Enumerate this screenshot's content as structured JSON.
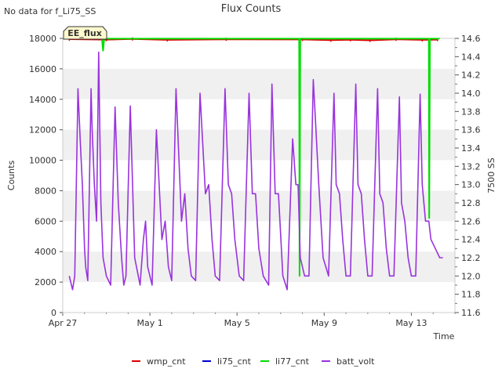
{
  "corner_note": "No data for f_Li75_SS",
  "badge": "EE_flux",
  "chart_data": {
    "type": "line",
    "title": "Flux Counts",
    "xlabel": "Time",
    "ylabel": "Counts",
    "y2label": "7500 SS",
    "x_unit": "days since Apr 27",
    "xlim": [
      0,
      18
    ],
    "ylim": [
      0,
      18000
    ],
    "y2lim": [
      11.6,
      14.6
    ],
    "x_ticks": [
      {
        "x": 0,
        "label": "Apr 27"
      },
      {
        "x": 4,
        "label": "May 1"
      },
      {
        "x": 8,
        "label": "May 5"
      },
      {
        "x": 12,
        "label": "May 9"
      },
      {
        "x": 16,
        "label": "May 13"
      }
    ],
    "y_ticks": [
      0,
      2000,
      4000,
      6000,
      8000,
      10000,
      12000,
      14000,
      16000,
      18000
    ],
    "y2_ticks": [
      "11.6",
      "11.8",
      "12.0",
      "12.2",
      "12.4",
      "12.6",
      "12.8",
      "13.0",
      "13.2",
      "13.4",
      "13.6",
      "13.8",
      "14.0",
      "14.2",
      "14.4",
      "14.6"
    ],
    "grid_bands": true,
    "legend_position": "bottom",
    "series": [
      {
        "name": "wmp_cnt",
        "color": "#dd0000",
        "axis": "left",
        "x": [
          0.3,
          2.0,
          3.2,
          4.8,
          7.5,
          11.0,
          12.3,
          13.2,
          14.1,
          15.3,
          16.5,
          17.2
        ],
        "values": [
          17950,
          17920,
          17960,
          17900,
          17940,
          17930,
          17880,
          17910,
          17870,
          17940,
          17900,
          17920
        ]
      },
      {
        "name": "li75_cnt",
        "color": "#0000cc",
        "axis": "left",
        "x": [],
        "values": []
      },
      {
        "name": "li77_cnt",
        "color": "#00dd00",
        "axis": "left",
        "x": [
          0.3,
          1.8,
          1.85,
          1.9,
          10.85,
          10.87,
          10.9,
          16.8,
          16.82,
          16.85,
          17.3
        ],
        "values": [
          17980,
          17980,
          17200,
          17980,
          17980,
          2400,
          17980,
          17980,
          6200,
          17980,
          17980
        ]
      },
      {
        "name": "batt_volt",
        "color": "#9933dd",
        "axis": "right",
        "x": [
          0.3,
          0.45,
          0.55,
          0.7,
          0.8,
          0.9,
          1.0,
          1.05,
          1.15,
          1.3,
          1.35,
          1.45,
          1.55,
          1.65,
          1.75,
          1.85,
          2.0,
          2.2,
          2.4,
          2.55,
          2.7,
          2.8,
          2.9,
          3.1,
          3.3,
          3.55,
          3.7,
          3.8,
          3.9,
          4.1,
          4.3,
          4.55,
          4.7,
          4.85,
          5.0,
          5.2,
          5.45,
          5.6,
          5.75,
          5.9,
          6.1,
          6.3,
          6.55,
          6.7,
          6.85,
          7.0,
          7.2,
          7.45,
          7.6,
          7.75,
          7.9,
          8.1,
          8.3,
          8.55,
          8.7,
          8.85,
          9.0,
          9.2,
          9.45,
          9.6,
          9.75,
          9.9,
          10.1,
          10.3,
          10.55,
          10.7,
          10.8,
          10.9,
          11.0,
          11.1,
          11.3,
          11.5,
          11.6,
          11.75,
          11.95,
          12.2,
          12.45,
          12.55,
          12.7,
          12.85,
          13.0,
          13.2,
          13.45,
          13.55,
          13.7,
          13.85,
          14.0,
          14.2,
          14.45,
          14.55,
          14.7,
          14.85,
          15.0,
          15.2,
          15.45,
          15.55,
          15.7,
          15.85,
          16.0,
          16.2,
          16.4,
          16.5,
          16.65,
          16.8,
          16.9,
          17.1,
          17.3,
          17.45
        ],
        "values": [
          12.0,
          11.85,
          12.0,
          14.05,
          13.5,
          13.0,
          12.3,
          12.1,
          11.95,
          14.05,
          13.6,
          13.0,
          12.6,
          14.45,
          12.8,
          12.2,
          12.0,
          11.9,
          13.85,
          12.8,
          12.2,
          11.9,
          12.0,
          13.86,
          12.2,
          11.9,
          12.4,
          12.6,
          12.1,
          11.9,
          13.6,
          12.4,
          12.6,
          12.1,
          11.95,
          14.05,
          12.6,
          12.9,
          12.3,
          12.0,
          11.95,
          14.0,
          12.9,
          13.0,
          12.4,
          12.0,
          11.95,
          14.05,
          13.0,
          12.9,
          12.4,
          12.0,
          11.95,
          14.0,
          12.9,
          12.9,
          12.3,
          12.0,
          11.9,
          14.1,
          12.9,
          12.9,
          12.0,
          11.85,
          13.5,
          13.0,
          13.0,
          12.2,
          12.1,
          12.0,
          12.0,
          14.15,
          13.7,
          13.0,
          12.2,
          12.0,
          14.0,
          13.0,
          12.9,
          12.4,
          12.0,
          12.0,
          14.1,
          13.0,
          12.9,
          12.4,
          12.0,
          12.0,
          14.05,
          12.9,
          12.8,
          12.3,
          12.0,
          12.0,
          13.96,
          12.8,
          12.6,
          12.2,
          12.0,
          12.0,
          13.99,
          13.0,
          12.6,
          12.6,
          12.4,
          12.3,
          12.2,
          12.2
        ]
      }
    ]
  }
}
